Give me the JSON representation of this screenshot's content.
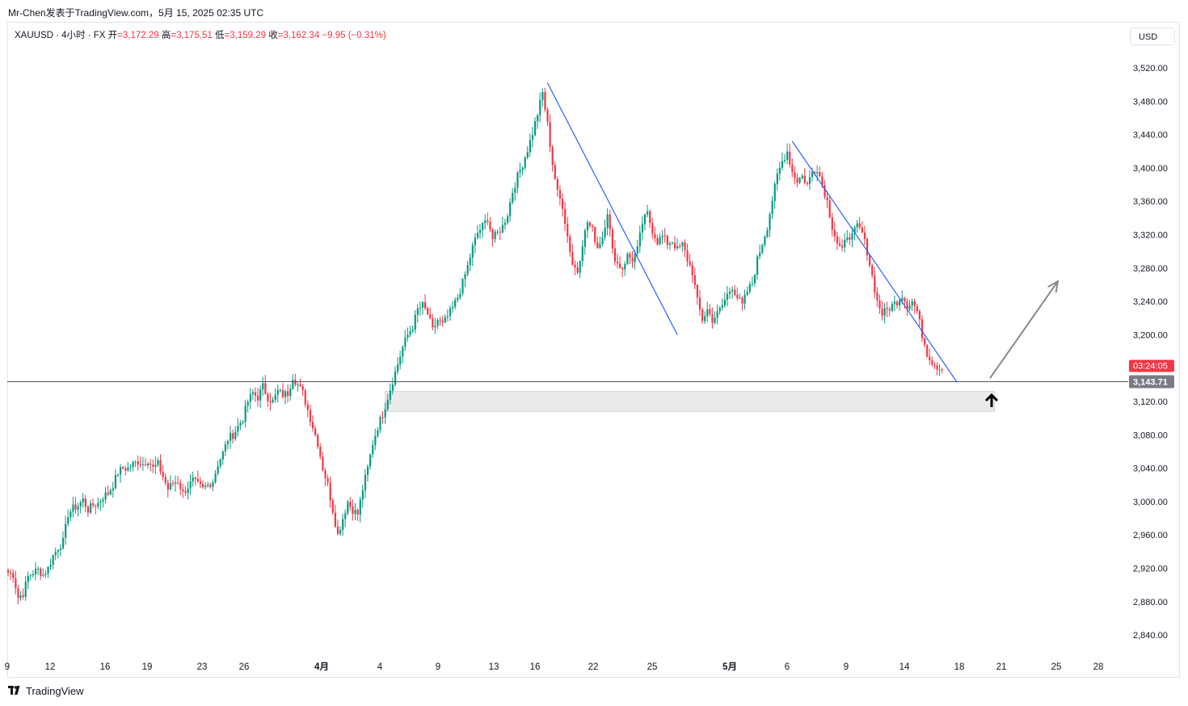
{
  "header": {
    "caption": "Mr-Chen发表于TradingView.com，5月 15, 2025 02:35 UTC"
  },
  "legend": {
    "symbol": "XAUUSD · 4小时 · FX",
    "open_label": "开",
    "open": "=3,172.29",
    "high_label": "高",
    "high": "=3,175.51",
    "low_label": "低",
    "low": "=3,159.29",
    "close_label": "收",
    "close": "=3,162.34",
    "change": "−9.95 (−0.31%)"
  },
  "toolbar": {
    "currency": "USD"
  },
  "footer": {
    "brand": "TradingView",
    "logo_icon": "tradingview-logo-icon"
  },
  "colors": {
    "up": "#089981",
    "down": "#f23645",
    "trendline": "#2962ff",
    "arrow": "#888888",
    "zone": "#ebebeb",
    "countdown_bg": "#f23645",
    "price_tag_bg": "#787b86"
  },
  "chart_data": {
    "type": "candlestick",
    "symbol": "XAUUSD",
    "timeframe": "4小时",
    "y_axis": {
      "min": 2820,
      "max": 3540,
      "ticks": [
        "3,520.00",
        "3,480.00",
        "3,440.00",
        "3,400.00",
        "3,360.00",
        "3,320.00",
        "3,280.00",
        "3,240.00",
        "3,200.00",
        "3,160.00",
        "3,120.00",
        "3,080.00",
        "3,040.00",
        "3,000.00",
        "2,960.00",
        "2,920.00",
        "2,880.00",
        "2,840.00"
      ],
      "tick_values": [
        3520,
        3480,
        3440,
        3400,
        3360,
        3320,
        3280,
        3240,
        3200,
        3160,
        3120,
        3080,
        3040,
        3000,
        2960,
        2920,
        2880,
        2840
      ]
    },
    "x_axis": {
      "labels": [
        "9",
        "12",
        "16",
        "19",
        "23",
        "26",
        "4月",
        "4",
        "9",
        "13",
        "16",
        "22",
        "25",
        "5月",
        "6",
        "9",
        "14",
        "18",
        "21",
        "25",
        "28"
      ],
      "bold": [
        "4月",
        "5月"
      ]
    },
    "current_price": "3,143.71",
    "current_price_value": 3143.71,
    "countdown": "03:24:05",
    "price_path": [
      [
        0,
        2915
      ],
      [
        2,
        2912
      ],
      [
        4,
        2885
      ],
      [
        6,
        2890
      ],
      [
        8,
        2910
      ],
      [
        10,
        2915
      ],
      [
        12,
        2918
      ],
      [
        14,
        2912
      ],
      [
        16,
        2920
      ],
      [
        18,
        2935
      ],
      [
        20,
        2945
      ],
      [
        22,
        2952
      ],
      [
        24,
        2985
      ],
      [
        26,
        2992
      ],
      [
        28,
        2995
      ],
      [
        30,
        3002
      ],
      [
        32,
        2990
      ],
      [
        34,
        2996
      ],
      [
        36,
        2998
      ],
      [
        38,
        3006
      ],
      [
        40,
        3010
      ],
      [
        42,
        3020
      ],
      [
        44,
        3035
      ],
      [
        46,
        3040
      ],
      [
        48,
        3040
      ],
      [
        50,
        3045
      ],
      [
        52,
        3048
      ],
      [
        54,
        3045
      ],
      [
        56,
        3050
      ],
      [
        58,
        3040
      ],
      [
        60,
        3045
      ],
      [
        62,
        3030
      ],
      [
        64,
        3015
      ],
      [
        66,
        3022
      ],
      [
        68,
        3025
      ],
      [
        70,
        3010
      ],
      [
        72,
        3018
      ],
      [
        74,
        3025
      ],
      [
        76,
        3020
      ],
      [
        78,
        3015
      ],
      [
        80,
        3020
      ],
      [
        82,
        3025
      ],
      [
        84,
        3045
      ],
      [
        86,
        3058
      ],
      [
        88,
        3075
      ],
      [
        90,
        3080
      ],
      [
        92,
        3090
      ],
      [
        94,
        3100
      ],
      [
        96,
        3120
      ],
      [
        98,
        3130
      ],
      [
        100,
        3125
      ],
      [
        102,
        3138
      ],
      [
        104,
        3125
      ],
      [
        106,
        3120
      ],
      [
        108,
        3132
      ],
      [
        110,
        3128
      ],
      [
        112,
        3130
      ],
      [
        114,
        3150
      ],
      [
        116,
        3140
      ],
      [
        118,
        3130
      ],
      [
        120,
        3110
      ],
      [
        122,
        3090
      ],
      [
        124,
        3070
      ],
      [
        126,
        3040
      ],
      [
        128,
        3020
      ],
      [
        130,
        2990
      ],
      [
        132,
        2960
      ],
      [
        134,
        2980
      ],
      [
        136,
        3000
      ],
      [
        138,
        2990
      ],
      [
        140,
        2985
      ],
      [
        142,
        3015
      ],
      [
        144,
        3040
      ],
      [
        146,
        3070
      ],
      [
        148,
        3090
      ],
      [
        150,
        3105
      ],
      [
        152,
        3125
      ],
      [
        154,
        3145
      ],
      [
        156,
        3165
      ],
      [
        158,
        3185
      ],
      [
        160,
        3200
      ],
      [
        162,
        3210
      ],
      [
        164,
        3230
      ],
      [
        166,
        3235
      ],
      [
        168,
        3225
      ],
      [
        170,
        3205
      ],
      [
        172,
        3218
      ],
      [
        174,
        3212
      ],
      [
        176,
        3222
      ],
      [
        178,
        3232
      ],
      [
        180,
        3245
      ],
      [
        182,
        3262
      ],
      [
        184,
        3282
      ],
      [
        186,
        3305
      ],
      [
        188,
        3322
      ],
      [
        190,
        3330
      ],
      [
        192,
        3340
      ],
      [
        194,
        3315
      ],
      [
        196,
        3322
      ],
      [
        198,
        3330
      ],
      [
        200,
        3345
      ],
      [
        202,
        3372
      ],
      [
        204,
        3390
      ],
      [
        206,
        3405
      ],
      [
        208,
        3422
      ],
      [
        210,
        3442
      ],
      [
        212,
        3465
      ],
      [
        214,
        3490
      ],
      [
        216,
        3452
      ],
      [
        218,
        3405
      ],
      [
        220,
        3370
      ],
      [
        222,
        3355
      ],
      [
        224,
        3318
      ],
      [
        226,
        3285
      ],
      [
        228,
        3276
      ],
      [
        230,
        3310
      ],
      [
        232,
        3335
      ],
      [
        234,
        3325
      ],
      [
        236,
        3305
      ],
      [
        238,
        3318
      ],
      [
        240,
        3348
      ],
      [
        242,
        3300
      ],
      [
        244,
        3285
      ],
      [
        246,
        3280
      ],
      [
        248,
        3295
      ],
      [
        250,
        3290
      ],
      [
        252,
        3302
      ],
      [
        254,
        3334
      ],
      [
        256,
        3345
      ],
      [
        258,
        3325
      ],
      [
        260,
        3312
      ],
      [
        262,
        3318
      ],
      [
        264,
        3310
      ],
      [
        266,
        3312
      ],
      [
        268,
        3302
      ],
      [
        270,
        3308
      ],
      [
        272,
        3290
      ],
      [
        274,
        3275
      ],
      [
        276,
        3240
      ],
      [
        278,
        3218
      ],
      [
        280,
        3230
      ],
      [
        282,
        3218
      ],
      [
        284,
        3225
      ],
      [
        286,
        3235
      ],
      [
        288,
        3248
      ],
      [
        290,
        3258
      ],
      [
        292,
        3245
      ],
      [
        294,
        3235
      ],
      [
        296,
        3252
      ],
      [
        298,
        3262
      ],
      [
        300,
        3290
      ],
      [
        302,
        3310
      ],
      [
        304,
        3330
      ],
      [
        306,
        3362
      ],
      [
        308,
        3390
      ],
      [
        310,
        3408
      ],
      [
        312,
        3420
      ],
      [
        314,
        3395
      ],
      [
        316,
        3385
      ],
      [
        318,
        3390
      ],
      [
        320,
        3380
      ],
      [
        322,
        3395
      ],
      [
        324,
        3400
      ],
      [
        326,
        3380
      ],
      [
        328,
        3360
      ],
      [
        330,
        3330
      ],
      [
        332,
        3310
      ],
      [
        334,
        3300
      ],
      [
        336,
        3320
      ],
      [
        338,
        3318
      ],
      [
        340,
        3330
      ],
      [
        342,
        3322
      ],
      [
        344,
        3300
      ],
      [
        346,
        3270
      ],
      [
        348,
        3240
      ],
      [
        350,
        3225
      ],
      [
        352,
        3230
      ],
      [
        354,
        3235
      ],
      [
        356,
        3240
      ],
      [
        358,
        3248
      ],
      [
        360,
        3235
      ],
      [
        362,
        3240
      ],
      [
        364,
        3228
      ],
      [
        366,
        3200
      ],
      [
        368,
        3178
      ],
      [
        370,
        3168
      ],
      [
        372,
        3162
      ],
      [
        374,
        3158
      ]
    ],
    "annotations": [
      {
        "type": "trendline",
        "from": [
          216,
          3502
        ],
        "to": [
          268,
          3200
        ]
      },
      {
        "type": "trendline",
        "from": [
          314,
          3432
        ],
        "to": [
          380,
          3143
        ]
      },
      {
        "type": "arrow",
        "from": [
          390,
          3148
        ],
        "to": [
          410,
          3264
        ]
      },
      {
        "type": "zone",
        "x_from": 151,
        "x_to": 395,
        "y_from": 3108,
        "y_to": 3132
      },
      {
        "type": "up-arrow-marker",
        "at": [
          400,
          3120
        ]
      },
      {
        "type": "horizontal-line",
        "y": 3143.71
      }
    ]
  }
}
